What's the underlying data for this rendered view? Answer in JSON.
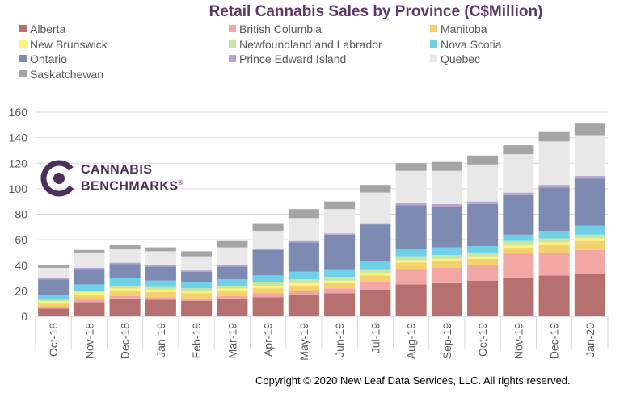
{
  "chart_data": {
    "type": "bar",
    "stacked": true,
    "title": "Retail Cannabis Sales by Province (C$Million)",
    "categories": [
      "Oct-18",
      "Nov-18",
      "Dec-18",
      "Jan-19",
      "Feb-19",
      "Mar-19",
      "Apr-19",
      "May-19",
      "Jun-19",
      "Jul-19",
      "Aug-19",
      "Sep-19",
      "Oct-19",
      "Nov-19",
      "Dec-19",
      "Jan-20"
    ],
    "ylim": [
      0,
      160
    ],
    "yticks": [
      0,
      20,
      40,
      60,
      80,
      100,
      120,
      140,
      160
    ],
    "grid": true,
    "legend_position": "top",
    "series": [
      {
        "name": "Alberta",
        "color": "#b5706f",
        "values": [
          6,
          11,
          14,
          13,
          12,
          14,
          15,
          17,
          18,
          21,
          25,
          26,
          28,
          30,
          32,
          33
        ]
      },
      {
        "name": "British Columbia",
        "color": "#f2a7a5",
        "values": [
          1,
          2,
          2,
          2,
          2,
          2,
          3,
          3,
          4,
          6,
          12,
          12,
          12,
          19,
          18,
          19
        ]
      },
      {
        "name": "Manitoba",
        "color": "#f5d06f",
        "values": [
          3,
          4,
          4,
          4,
          4,
          4,
          4,
          4,
          4,
          5,
          5,
          5,
          5,
          5,
          6,
          7
        ]
      },
      {
        "name": "New Brunswick",
        "color": "#faf37a",
        "values": [
          2,
          2,
          2,
          2,
          2,
          2,
          2,
          2,
          2,
          2,
          2,
          2,
          2,
          2,
          2,
          2
        ]
      },
      {
        "name": "Newfoundland and Labrador",
        "color": "#c8e6a0",
        "values": [
          1,
          1,
          2,
          2,
          2,
          2,
          3,
          3,
          3,
          3,
          3,
          3,
          3,
          3,
          3,
          3
        ]
      },
      {
        "name": "Nova Scotia",
        "color": "#6fd0ea",
        "values": [
          4,
          5,
          6,
          5,
          5,
          5,
          5,
          6,
          6,
          6,
          6,
          6,
          5,
          5,
          6,
          7
        ]
      },
      {
        "name": "Ontario",
        "color": "#7d8bb3",
        "values": [
          12,
          12,
          11,
          11,
          8,
          10,
          20,
          23,
          27,
          29,
          34,
          32,
          33,
          31,
          34,
          37
        ]
      },
      {
        "name": "Prince Edward Island",
        "color": "#b7a3d4",
        "values": [
          1,
          1,
          1,
          1,
          1,
          1,
          1,
          1,
          1,
          1,
          2,
          2,
          2,
          2,
          2,
          2
        ]
      },
      {
        "name": "Quebec",
        "color": "#e8e8e8",
        "values": [
          8,
          12,
          11,
          11,
          11,
          14,
          14,
          18,
          19,
          24,
          25,
          26,
          29,
          30,
          34,
          32
        ]
      },
      {
        "name": "Saskatchewan",
        "color": "#a5a5a5",
        "values": [
          2,
          2,
          3,
          3,
          4,
          5,
          6,
          7,
          6,
          6,
          6,
          7,
          7,
          7,
          8,
          9
        ]
      }
    ]
  },
  "logo": {
    "line1": "CANNABIS",
    "line2": "BENCHMARKS",
    "mark": "®"
  },
  "copyright": "Copyright © 2020 New Leaf Data Services, LLC. All rights reserved."
}
